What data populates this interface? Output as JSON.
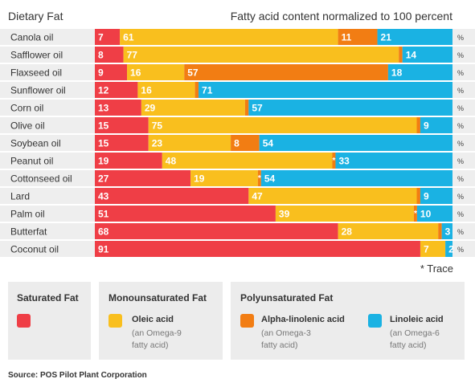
{
  "header": {
    "left": "Dietary Fat",
    "right": "Fatty acid content normalized to 100 percent"
  },
  "trace_note": "* Trace",
  "source": "Source: POS Pilot Plant Corporation",
  "legend": {
    "saturated": {
      "title": "Saturated Fat"
    },
    "mono": {
      "title": "Monounsaturated Fat",
      "label": "Oleic acid",
      "sub1": "(an Omega-9",
      "sub2": "fatty acid)"
    },
    "poly": {
      "title": "Polyunsaturated Fat",
      "ala": {
        "label": "Alpha-linolenic acid",
        "sub1": "(an Omega-3",
        "sub2": "fatty acid)"
      },
      "la": {
        "label": "Linoleic acid",
        "sub1": "(an Omega-6",
        "sub2": "fatty acid)"
      }
    }
  },
  "colors": {
    "saturated": "#ef3e46",
    "oleic": "#f9bf1e",
    "alpha_linolenic": "#f27d13",
    "linoleic": "#1ab2e3",
    "row_bg": "#eeeeee"
  },
  "chart_data": {
    "type": "bar",
    "orientation": "horizontal",
    "stacked": true,
    "percent_symbol": "%",
    "trace_label": "*",
    "categories": [
      "Canola oil",
      "Safflower oil",
      "Flaxseed oil",
      "Sunflower oil",
      "Corn oil",
      "Olive oil",
      "Soybean oil",
      "Peanut oil",
      "Cottonseed oil",
      "Lard",
      "Palm oil",
      "Butterfat",
      "Coconut oil"
    ],
    "series": [
      {
        "name": "Saturated Fat",
        "values": [
          7,
          8,
          9,
          12,
          13,
          15,
          15,
          19,
          27,
          43,
          51,
          68,
          91
        ]
      },
      {
        "name": "Oleic acid",
        "values": [
          61,
          77,
          16,
          16,
          29,
          75,
          23,
          48,
          19,
          47,
          39,
          28,
          7
        ]
      },
      {
        "name": "Alpha-linolenic acid",
        "values": [
          11,
          1,
          57,
          1,
          1,
          1,
          8,
          "*",
          "*",
          1,
          "*",
          1,
          null
        ]
      },
      {
        "name": "Linoleic acid",
        "values": [
          21,
          14,
          18,
          71,
          57,
          9,
          54,
          33,
          54,
          9,
          10,
          3,
          2
        ]
      }
    ]
  }
}
